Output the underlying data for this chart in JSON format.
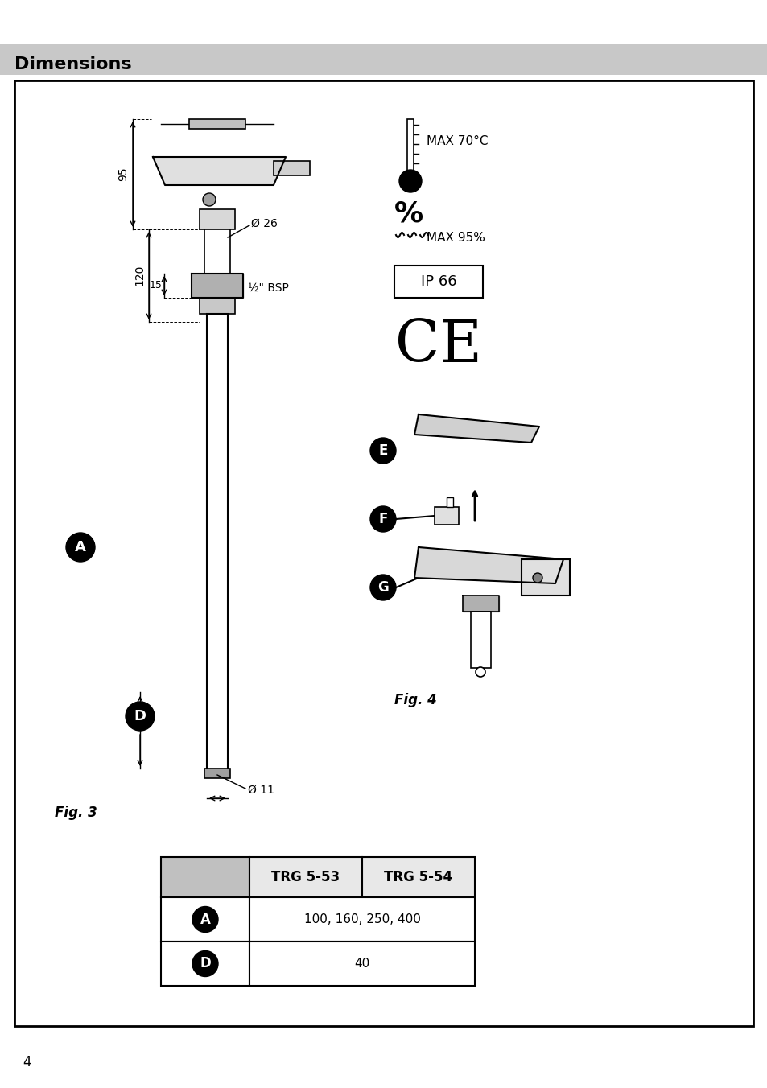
{
  "page_bg": "#ffffff",
  "header_bg": "#c8c8c8",
  "header_text": "Dimensions",
  "header_fontsize": 16,
  "border_color": "#000000",
  "page_number": "4",
  "fig3_label": "Fig. 3",
  "fig4_label": "Fig. 4",
  "dim_95": "95",
  "dim_120": "120",
  "dim_15": "15",
  "dim_26": "Ø 26",
  "dim_11": "Ø 11",
  "bsp_label": "½\" BSP",
  "label_A": "A",
  "label_D": "D",
  "label_E": "E",
  "label_F": "F",
  "label_G": "G",
  "temp_label": "MAX 70°C",
  "humid_label": "MAX 95%",
  "ip_label": "IP 66",
  "ce_label": "CE",
  "table_col1": "TRG 5-53",
  "table_col2": "TRG 5-54",
  "table_row1_val": "100, 160, 250, 400",
  "table_row2_val": "40"
}
